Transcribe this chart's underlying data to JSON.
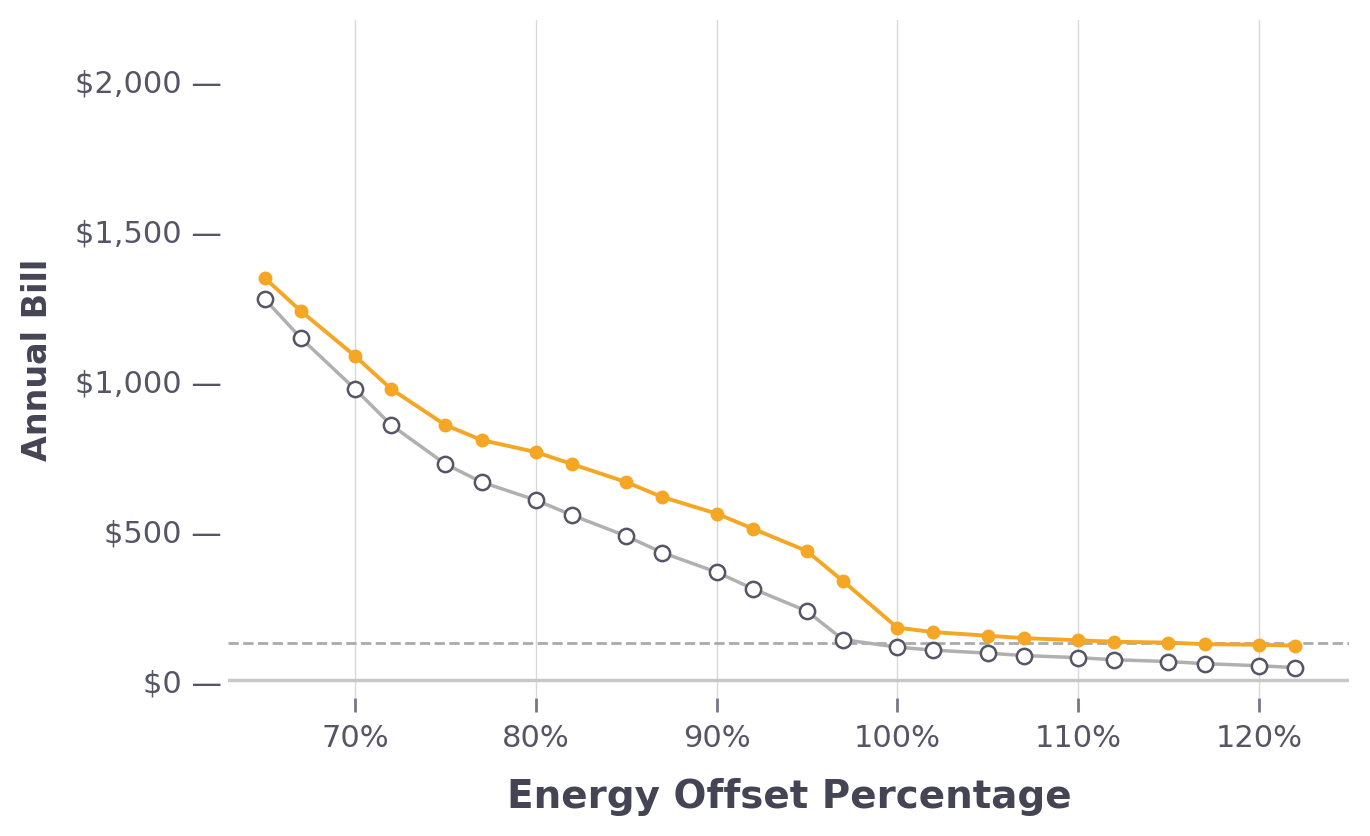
{
  "x_values": [
    65,
    67,
    70,
    72,
    75,
    77,
    80,
    82,
    85,
    87,
    90,
    92,
    95,
    97,
    100,
    102,
    105,
    107,
    110,
    112,
    115,
    117,
    120,
    122
  ],
  "orange_values": [
    1340,
    1230,
    1080,
    970,
    850,
    800,
    760,
    720,
    660,
    610,
    555,
    505,
    430,
    330,
    175,
    160,
    148,
    140,
    133,
    128,
    125,
    120,
    118,
    115
  ],
  "gray_values": [
    1270,
    1140,
    970,
    850,
    720,
    660,
    600,
    550,
    480,
    425,
    360,
    305,
    230,
    135,
    110,
    100,
    90,
    82,
    75,
    68,
    62,
    55,
    48,
    42
  ],
  "dashed_line_y": 125,
  "orange_color": "#F5A623",
  "gray_line_color": "#B0B0B0",
  "gray_marker_edge_color": "#555566",
  "dashed_color": "#AAAAAA",
  "zero_line_color": "#C8C8C8",
  "background_color": "#FFFFFF",
  "xlabel": "Energy Offset Percentage",
  "ylabel": "Annual Bill",
  "ytick_values": [
    0,
    500,
    1000,
    1500,
    2000
  ],
  "ytick_labels": [
    "$0",
    "$500",
    "$1,000",
    "$1,500",
    "$2,000"
  ],
  "ylim": [
    -60,
    2200
  ],
  "xtick_positions": [
    70,
    80,
    90,
    100,
    110,
    120
  ],
  "xtick_labels": [
    "70%",
    "80%",
    "90%",
    "100%",
    "110%",
    "120%"
  ],
  "xlim": [
    63,
    125
  ],
  "grid_color": "#D8D8D8",
  "tick_text_color": "#555566",
  "axis_label_color": "#444455",
  "marker_size_orange": 9,
  "marker_size_gray": 11,
  "linewidth_orange": 2.8,
  "linewidth_gray": 2.5,
  "ytick_fontsize": 22,
  "xtick_fontsize": 22,
  "xlabel_fontsize": 28,
  "ylabel_fontsize": 24,
  "dash_after_ytick": " —"
}
